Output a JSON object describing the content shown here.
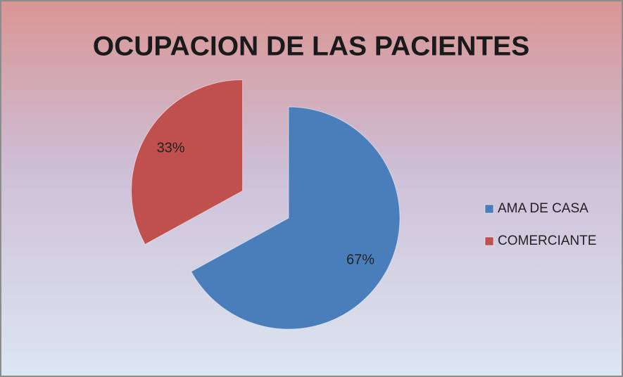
{
  "chart_data": {
    "type": "pie",
    "title": "OCUPACION DE LAS PACIENTES",
    "categories": [
      "AMA DE CASA",
      "COMERCIANTE"
    ],
    "values": [
      67,
      33
    ],
    "value_labels": [
      "67%",
      "33%"
    ],
    "colors": [
      "#4a7ebb",
      "#c0504d"
    ],
    "legend": "right"
  }
}
